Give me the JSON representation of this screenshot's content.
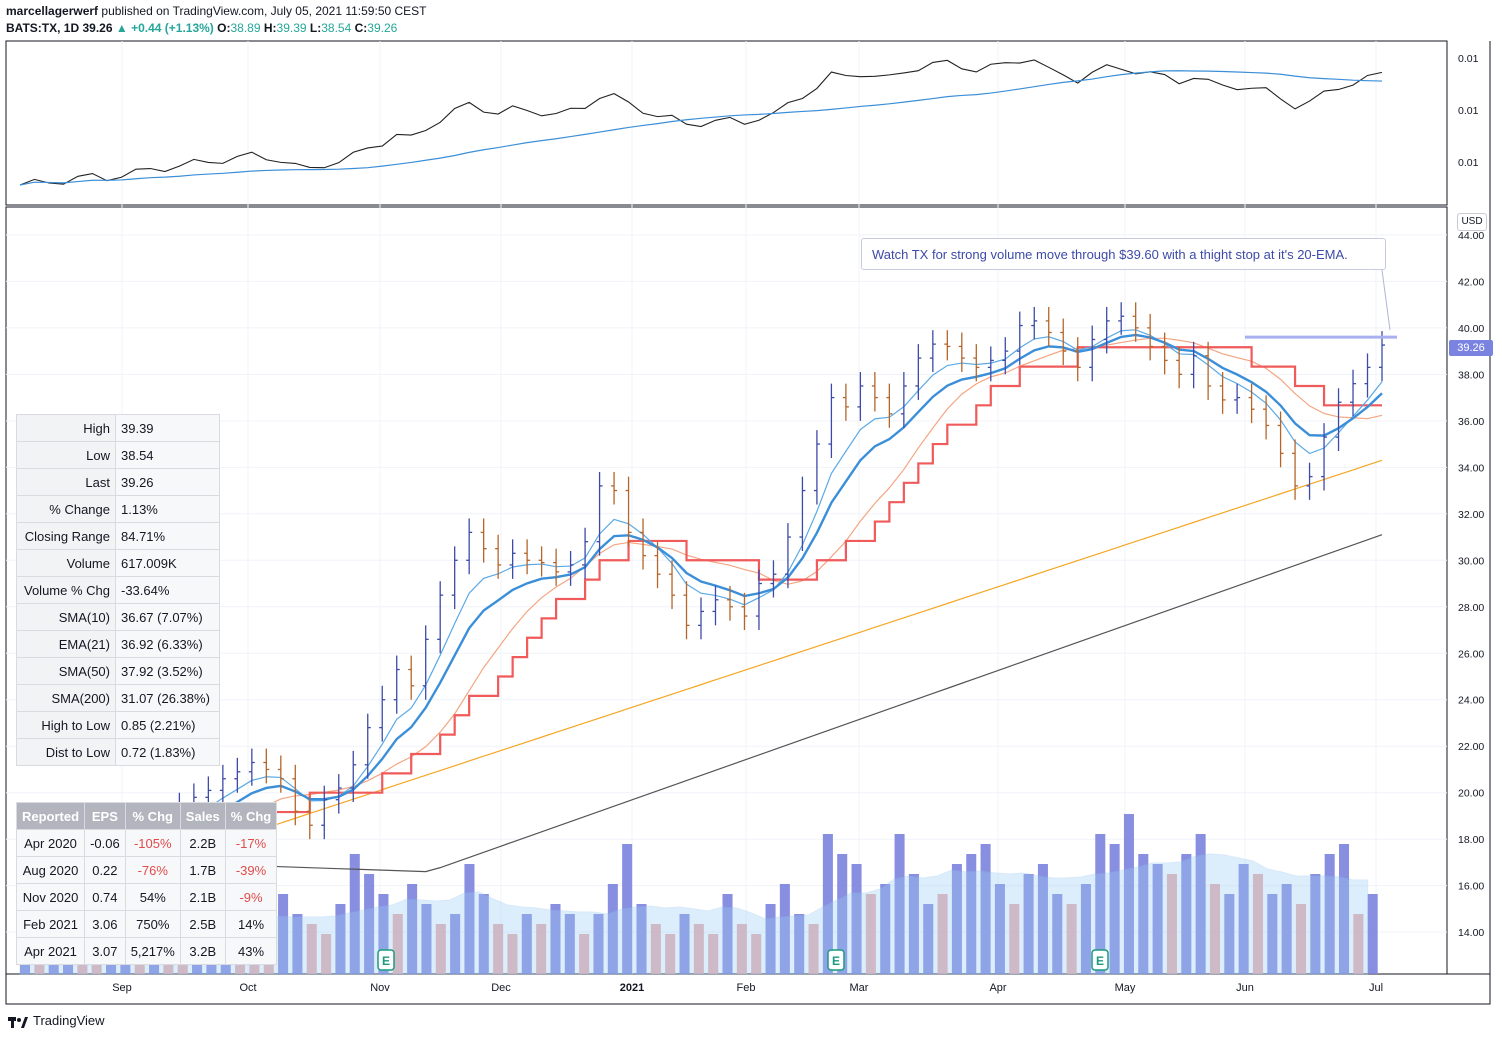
{
  "header": {
    "line1_user": "marcellagerwerf",
    "line1_rest": "published on TradingView.com, July 05, 2021 11:59:50 CEST",
    "symbol": "BATS:TX, 1D",
    "last": "39.26",
    "change": "+0.44 (+1.13%)",
    "ohlc": {
      "o_label": "O:",
      "o": "38.89",
      "h_label": "H:",
      "h": "39.39",
      "l_label": "L:",
      "l": "38.54",
      "c_label": "C:",
      "c": "39.26"
    }
  },
  "currency_label": "USD",
  "last_price_tag": "39.26",
  "annotation_note": "Watch TX for strong volume move through $39.60 with a thight stop at it's 20-EMA.",
  "stats_table": [
    {
      "k": "High",
      "v": "39.39"
    },
    {
      "k": "Low",
      "v": "38.54"
    },
    {
      "k": "Last",
      "v": "39.26"
    },
    {
      "k": "% Change",
      "v": "1.13%"
    },
    {
      "k": "Closing Range",
      "v": "84.71%"
    },
    {
      "k": "Volume",
      "v": "617.009K"
    },
    {
      "k": "Volume % Chg",
      "v": "-33.64%"
    },
    {
      "k": "SMA(10)",
      "v": "36.67 (7.07%)"
    },
    {
      "k": "EMA(21)",
      "v": "36.92 (6.33%)"
    },
    {
      "k": "SMA(50)",
      "v": "37.92 (3.52%)"
    },
    {
      "k": "SMA(200)",
      "v": "31.07 (26.38%)"
    },
    {
      "k": "High to Low",
      "v": "0.85 (2.21%)"
    },
    {
      "k": "Dist to Low",
      "v": "0.72 (1.83%)"
    }
  ],
  "earnings_table": {
    "headers": [
      "Reported",
      "EPS",
      "% Chg",
      "Sales",
      "% Chg"
    ],
    "rows": [
      [
        "Apr 2020",
        "-0.06",
        "-105%",
        "2.2B",
        "-17%"
      ],
      [
        "Aug 2020",
        "0.22",
        "-76%",
        "1.7B",
        "-39%"
      ],
      [
        "Nov 2020",
        "0.74",
        "54%",
        "2.1B",
        "-9%"
      ],
      [
        "Feb 2021",
        "3.06",
        "750%",
        "2.5B",
        "14%"
      ],
      [
        "Apr 2021",
        "3.07",
        "5,217%",
        "3.2B",
        "43%"
      ]
    ]
  },
  "footer_brand": "TradingView",
  "earnings_marker_label": "E",
  "colors": {
    "up": "#3d4aa8",
    "down": "#b5652a",
    "sma10": "#5aa9e6",
    "ema21": "#3b8fd8",
    "rs_line": "#f05a5a",
    "sma50": "#f4a582",
    "sma200_orange": "#f5a623",
    "sma200_black": "#555555",
    "vol_up": "#7b82dd",
    "vol_down": "#e8a6a6",
    "grid": "#f0f3fa",
    "resistance": "#a9b0f0"
  },
  "chart_data": {
    "type": "line",
    "x_axis_labels": [
      "Sep",
      "Oct",
      "Nov",
      "Dec",
      "2021",
      "Feb",
      "Mar",
      "Apr",
      "May",
      "Jun",
      "Jul"
    ],
    "price_ticks": [
      "44.00",
      "42.00",
      "40.00",
      "38.00",
      "36.00",
      "34.00",
      "32.00",
      "30.00",
      "28.00",
      "26.00",
      "24.00",
      "22.00",
      "20.00",
      "18.00",
      "16.00",
      "14.00"
    ],
    "price_ylim": [
      12.2,
      45.2
    ],
    "indicator_ticks": [
      "0.01",
      "0.01",
      "0.01"
    ],
    "resistance_level": 39.6,
    "series": [
      {
        "name": "Price",
        "values": [
          15.6,
          15.9,
          16.2,
          16.5,
          16.9,
          17.2,
          17.0,
          17.6,
          18.0,
          18.5,
          19.0,
          19.4,
          19.8,
          20.1,
          20.6,
          20.9,
          21.3,
          21.0,
          20.6,
          19.2,
          18.6,
          19.7,
          20.2,
          21.2,
          22.8,
          24.0,
          25.3,
          24.6,
          26.6,
          28.5,
          30.0,
          31.2,
          30.5,
          29.8,
          30.3,
          30.0,
          29.9,
          29.5,
          29.8,
          30.8,
          33.2,
          33.0,
          31.2,
          30.2,
          29.4,
          28.5,
          27.2,
          27.8,
          28.3,
          28.0,
          27.6,
          29.0,
          29.4,
          31.0,
          33.0,
          35.0,
          37.0,
          36.6,
          37.5,
          37.0,
          36.3,
          37.5,
          38.7,
          39.3,
          39.2,
          38.7,
          38.3,
          38.6,
          39.0,
          40.1,
          40.3,
          39.8,
          39.0,
          38.3,
          39.5,
          40.3,
          40.5,
          40.0,
          39.2,
          38.6,
          38.0,
          38.8,
          37.5,
          36.9,
          37.0,
          36.5,
          35.8,
          34.6,
          33.2,
          33.6,
          35.3,
          36.8,
          37.6,
          38.3,
          39.26
        ]
      },
      {
        "name": "RS",
        "values": []
      }
    ],
    "volume_bars": [
      5,
      4,
      6,
      8,
      4,
      3,
      5,
      6,
      4,
      7,
      5,
      4,
      6,
      9,
      7,
      5,
      4,
      3,
      8,
      6,
      5,
      4,
      7,
      12,
      10,
      8,
      6,
      9,
      7,
      5,
      6,
      11,
      8,
      5,
      4,
      6,
      5,
      7,
      6,
      4,
      6,
      9,
      13,
      7,
      5,
      4,
      6,
      5,
      4,
      8,
      5,
      4,
      7,
      9,
      6,
      5,
      14,
      12,
      11,
      8,
      9,
      14,
      10,
      7,
      8,
      11,
      12,
      13,
      9,
      7,
      10,
      11,
      8,
      7,
      9,
      14,
      13,
      16,
      12,
      11,
      10,
      12,
      14,
      9,
      8,
      11,
      10,
      8,
      9,
      7,
      10,
      12,
      13,
      6,
      8
    ],
    "volume_up_mask": [
      1,
      0,
      1,
      1,
      0,
      0,
      1,
      1,
      0,
      1,
      0,
      0,
      1,
      1,
      1,
      0,
      0,
      0,
      1,
      1,
      0,
      0,
      1,
      1,
      1,
      1,
      0,
      1,
      1,
      0,
      1,
      1,
      1,
      0,
      0,
      1,
      0,
      1,
      1,
      0,
      1,
      1,
      1,
      1,
      0,
      0,
      1,
      0,
      0,
      1,
      0,
      0,
      1,
      1,
      1,
      0,
      1,
      1,
      1,
      0,
      1,
      1,
      1,
      1,
      0,
      1,
      1,
      1,
      1,
      0,
      1,
      1,
      1,
      0,
      1,
      1,
      1,
      1,
      1,
      1,
      0,
      1,
      1,
      0,
      1,
      1,
      0,
      1,
      1,
      0,
      1,
      1,
      1,
      0,
      1
    ]
  }
}
